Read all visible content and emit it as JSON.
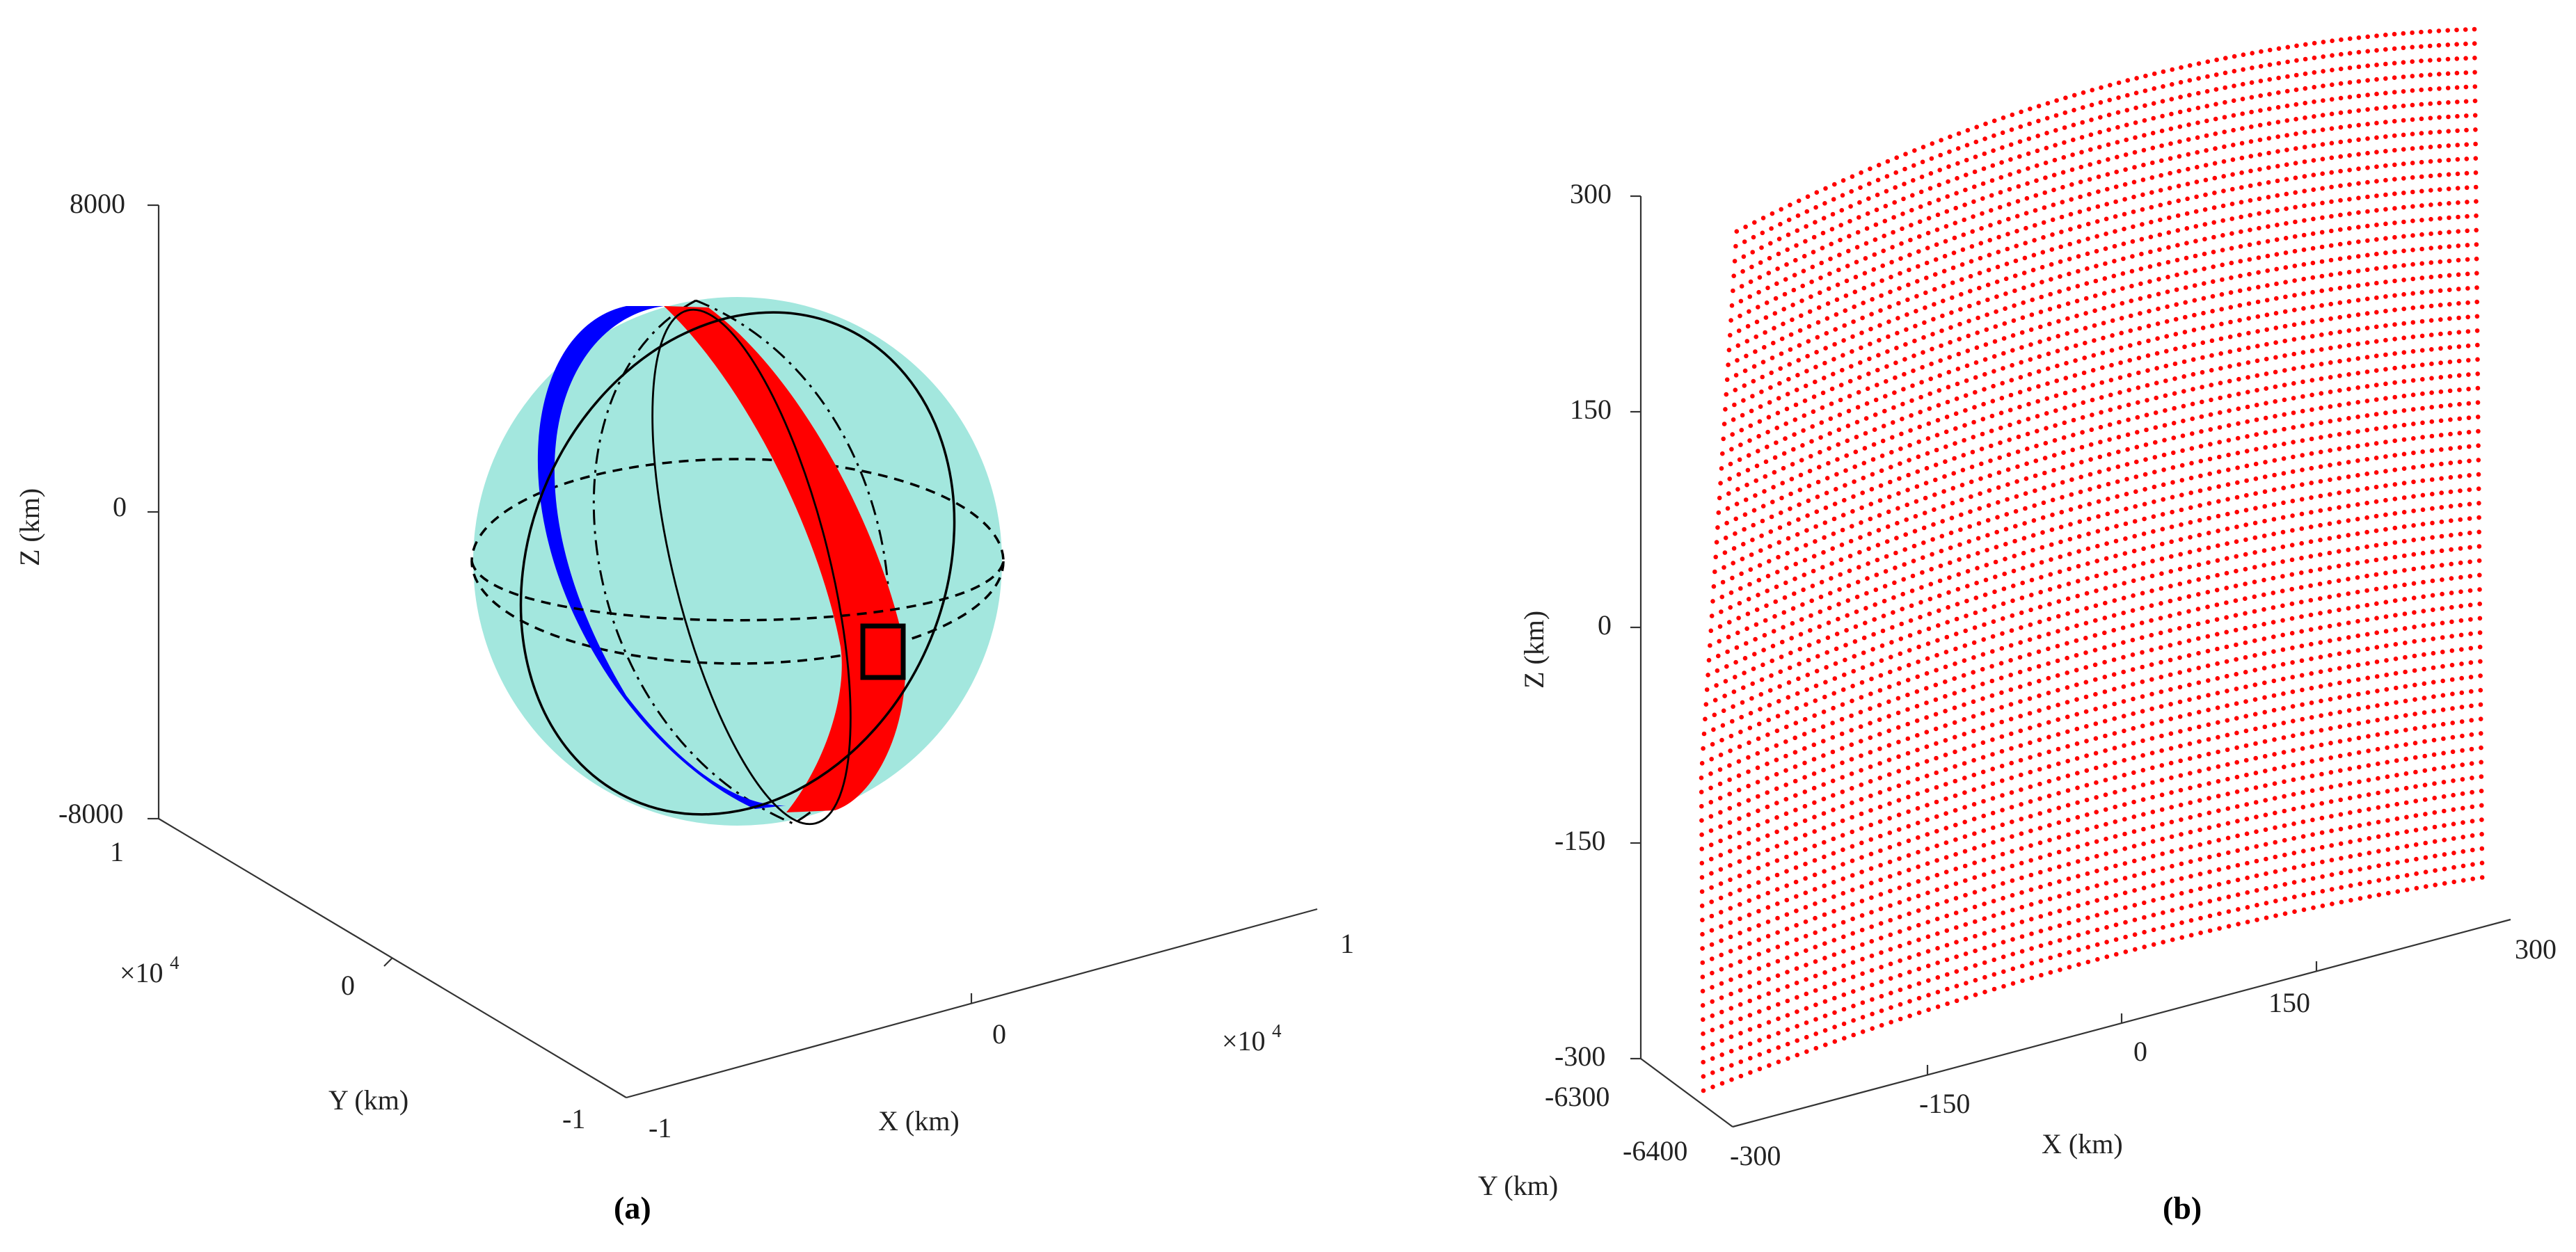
{
  "chart_data": [
    {
      "panel": "(a)",
      "type": "scatter",
      "xlabel": "X (km)",
      "ylabel": "Y (km)",
      "zlabel": "Z (km)",
      "x_ticks": [
        "-1",
        "0",
        "1"
      ],
      "y_ticks": [
        "-1",
        "0",
        "1"
      ],
      "z_ticks": [
        "-8000",
        "0",
        "8000"
      ],
      "x_exponent": "×10",
      "y_exponent": "×10",
      "exponent_power": "4",
      "xlim": [
        -10000,
        10000
      ],
      "ylim": [
        -10000,
        10000
      ],
      "zlim": [
        -8000,
        8000
      ],
      "colors": {
        "earth": "#a3e7de",
        "ground_track_1": "#0000ff",
        "ground_track_2": "#ff0000",
        "orbit_lines": "#000000",
        "region_box": "#000000"
      },
      "grid": false
    },
    {
      "panel": "(b)",
      "type": "scatter",
      "xlabel": "X (km)",
      "ylabel": "Y (km)",
      "zlabel": "Z (km)",
      "x_ticks": [
        "-300",
        "-150",
        "0",
        "150",
        "300"
      ],
      "y_ticks": [
        "-6400",
        "-6300"
      ],
      "z_ticks": [
        "-300",
        "-150",
        "0",
        "150",
        "300"
      ],
      "xlim": [
        -300,
        300
      ],
      "ylim": [
        -6400,
        -6300
      ],
      "zlim": [
        -300,
        300
      ],
      "point_color": "#ff0000",
      "grid": false
    }
  ]
}
